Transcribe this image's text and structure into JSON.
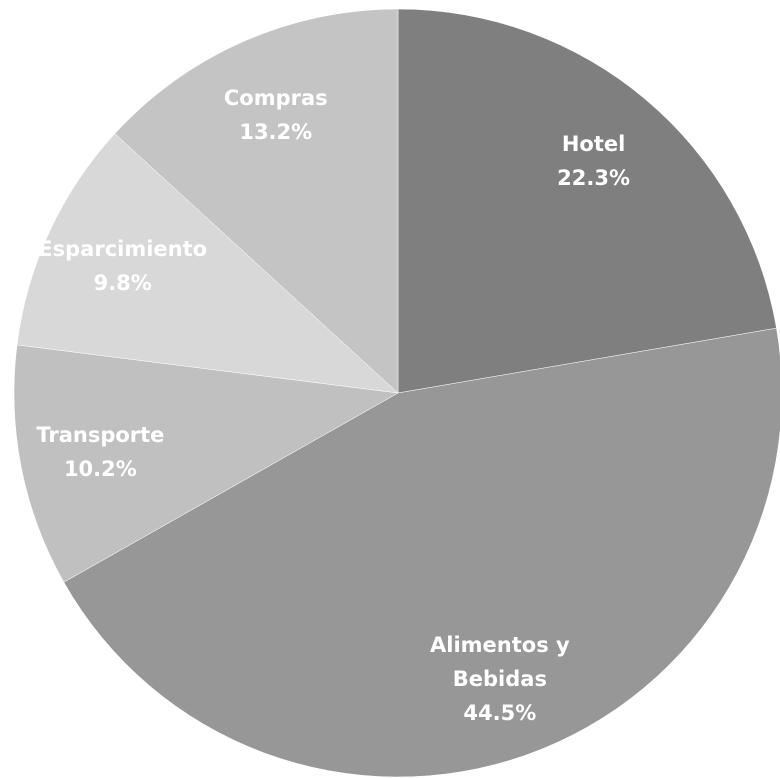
{
  "chart_data": {
    "type": "pie",
    "categories": [
      "Hotel",
      "Alimentos y Bebidas",
      "Transporte",
      "Esparcimiento",
      "Compras"
    ],
    "values": [
      22.3,
      44.5,
      10.2,
      9.8,
      13.2
    ],
    "value_labels": [
      "22.3%",
      "44.5%",
      "10.2%",
      "9.8%",
      "13.2%"
    ],
    "colors": [
      "#7f7f7f",
      "#979797",
      "#c0c0c0",
      "#d8d8d8",
      "#c4c4c4"
    ]
  }
}
